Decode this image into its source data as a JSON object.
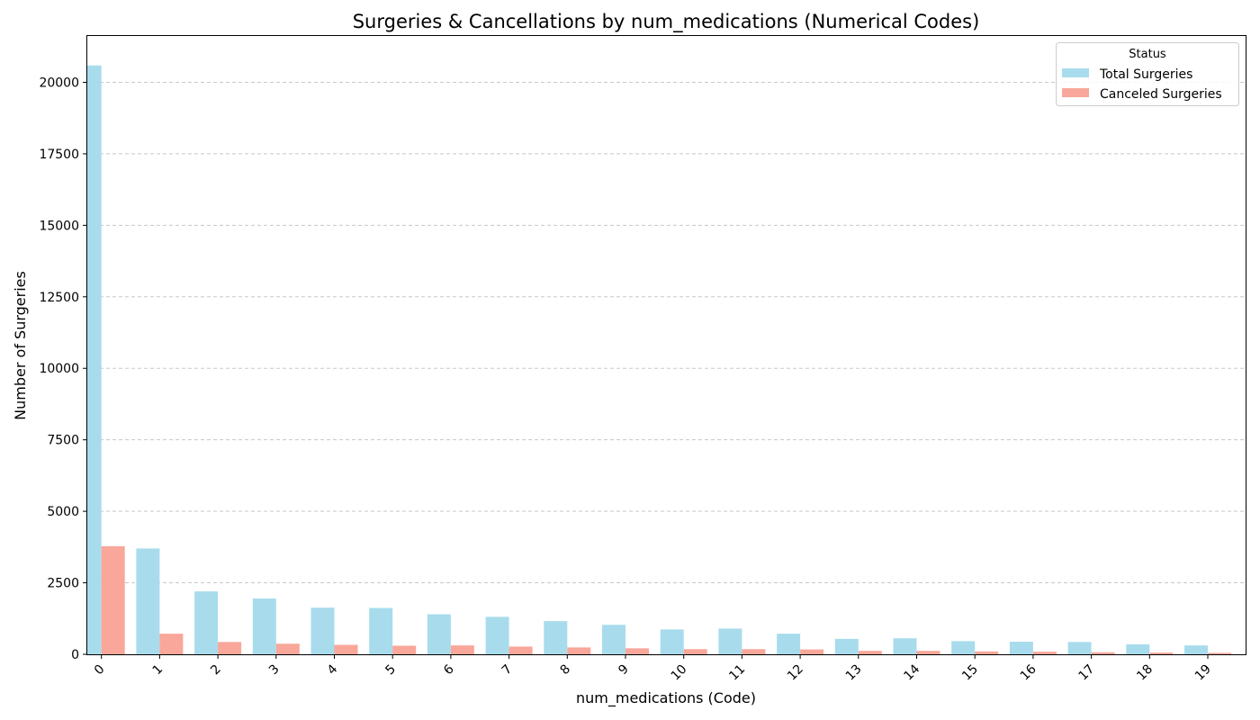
{
  "chart_data": {
    "type": "bar",
    "title": "Surgeries & Cancellations by num_medications (Numerical Codes)",
    "xlabel": "num_medications (Code)",
    "ylabel": "Number of Surgeries",
    "categories": [
      "0",
      "1",
      "2",
      "3",
      "4",
      "5",
      "6",
      "7",
      "8",
      "9",
      "10",
      "11",
      "12",
      "13",
      "14",
      "15",
      "16",
      "17",
      "18",
      "19"
    ],
    "series": [
      {
        "name": "Total Surgeries",
        "color": "#a8dcec",
        "values": [
          20590,
          3700,
          2200,
          1950,
          1630,
          1620,
          1400,
          1310,
          1160,
          1030,
          870,
          900,
          720,
          540,
          560,
          460,
          440,
          430,
          350,
          310
        ]
      },
      {
        "name": "Canceled Surgeries",
        "color": "#f9a79a",
        "values": [
          3780,
          720,
          430,
          370,
          330,
          300,
          310,
          270,
          240,
          210,
          180,
          180,
          170,
          120,
          120,
          100,
          90,
          70,
          60,
          50
        ]
      }
    ],
    "ylim": [
      0,
      21620
    ],
    "yticks": [
      0,
      2500,
      5000,
      7500,
      10000,
      12500,
      15000,
      17500,
      20000
    ],
    "grid": "y-dashed",
    "legend": {
      "title": "Status",
      "placement": "top-right"
    }
  }
}
